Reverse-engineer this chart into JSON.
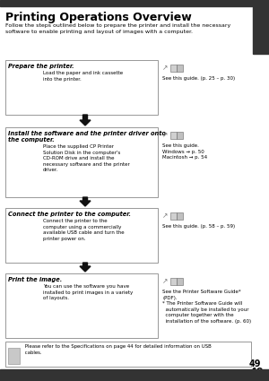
{
  "page_num": "49",
  "title": "Printing Operations Overview",
  "subtitle": "Follow the steps outlined below to prepare the printer and install the necessary\nsoftware to enable printing and layout of images with a computer.",
  "bg_color": "#f0f0f0",
  "page_bg": "#ffffff",
  "header_bar_color": "#333333",
  "right_bar_color": "#333333",
  "box_border_color": "#999999",
  "arrow_color": "#111111",
  "steps": [
    {
      "title": "Prepare the printer.",
      "body": "Load the paper and ink cassette\ninto the printer.",
      "ref": "See this guide. (p. 25 – p. 30)"
    },
    {
      "title": "Install the software and the printer driver onto\nthe computer.",
      "body": "Place the supplied CP Printer\nSolution Disk in the computer's\nCD-ROM drive and install the\nnecessary software and the printer\ndriver.",
      "ref": "See this guide.\nWindows → p. 50\nMacintosh → p. 54"
    },
    {
      "title": "Connect the printer to the computer.",
      "body": "Connect the printer to the\ncomputer using a commercially\navailable USB cable and turn the\nprinter power on.",
      "ref": "See this guide. (p. 58 – p. 59)"
    },
    {
      "title": "Print the image.",
      "body": "You can use the software you have\ninstalled to print images in a variety\nof layouts.",
      "ref": "See the Printer Software Guide*\n(PDF).\n* The Printer Software Guide will\n  automatically be installed to your\n  computer together with the\n  installation of the software. (p. 60)"
    }
  ],
  "note": " Please refer to the Specifications on page 44 for detailed information on USB\n cables."
}
